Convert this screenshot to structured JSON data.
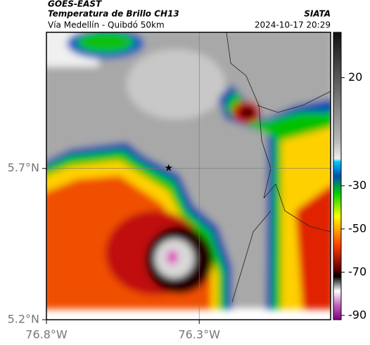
{
  "header": {
    "title": "GOES-EAST",
    "subtitle": "Temperatura de Brillo CH13",
    "route": "Vía Medellín - Quibdó 50km",
    "source": "SIATA",
    "datetime": "2024-10-17 20:29"
  },
  "map": {
    "lat_range": [
      5.2,
      6.15
    ],
    "lon_range": [
      76.8,
      75.87
    ],
    "lat_ticks": [
      {
        "value": 5.7,
        "label": "5.7°N"
      },
      {
        "value": 5.2,
        "label": "5.2°N"
      }
    ],
    "lon_ticks": [
      {
        "value": 76.8,
        "label": "76.8°W"
      },
      {
        "value": 76.3,
        "label": "76.3°W"
      }
    ],
    "marker": {
      "lat": 5.7,
      "lon": 76.4
    }
  },
  "colorbar": {
    "range": [
      -92,
      41
    ],
    "ticks": [
      20,
      -30,
      -50,
      -70,
      -90
    ]
  }
}
